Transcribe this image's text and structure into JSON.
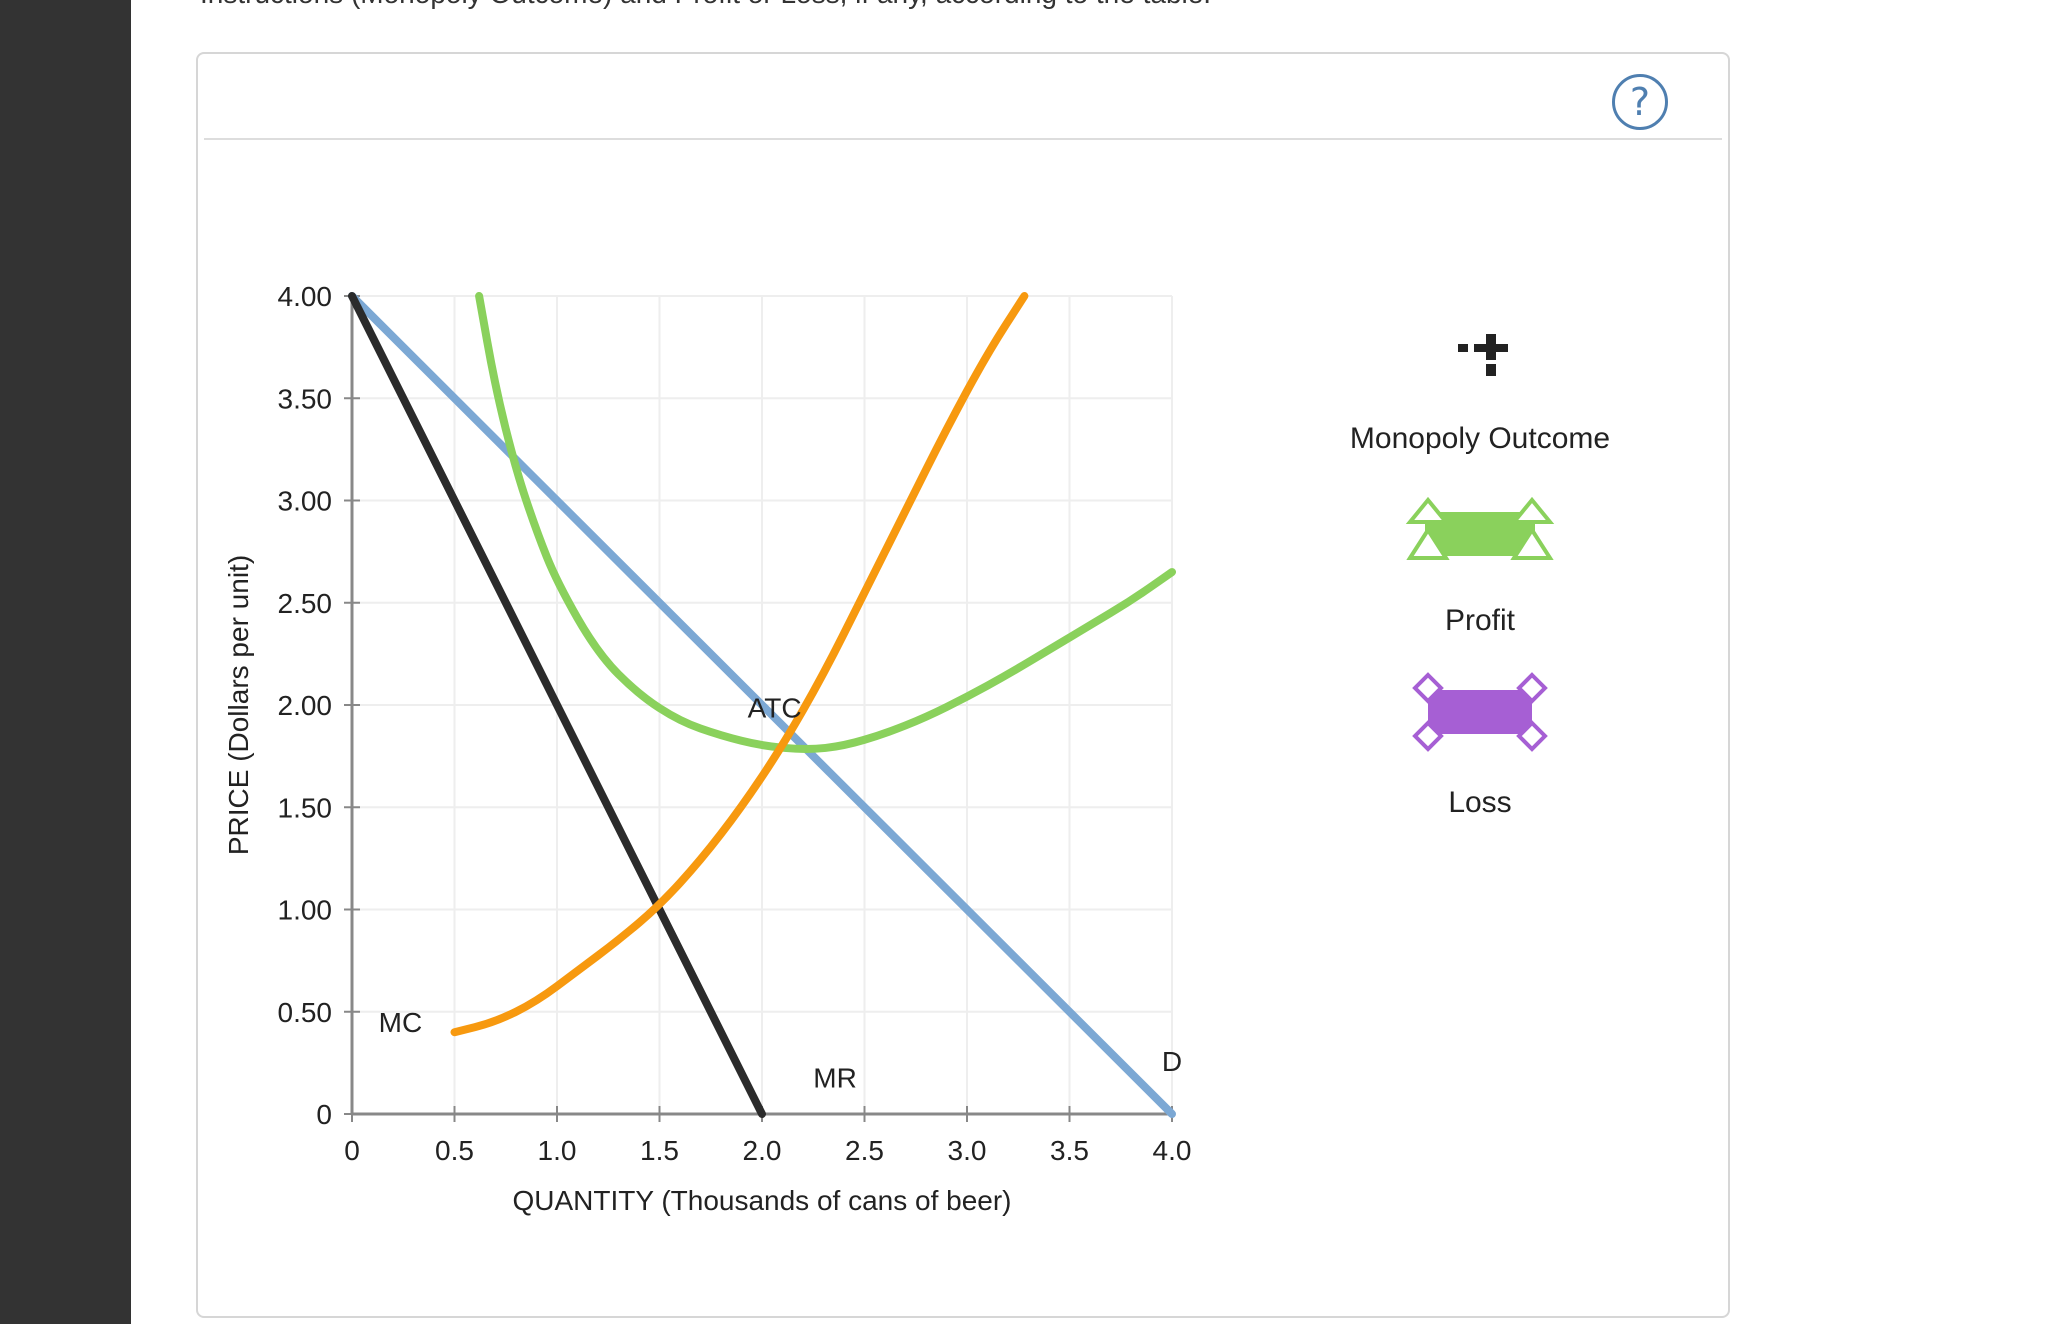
{
  "header": {
    "top_text": "Instructions (Monopoly Outcome) and Profit or Loss, if any, according to the table."
  },
  "help_label": "?",
  "palette": [
    {
      "id": "monopoly",
      "label": "Monopoly Outcome",
      "icon": "crosshair-plus-icon",
      "color": "#222222"
    },
    {
      "id": "profit",
      "label": "Profit",
      "icon": "green-rectangle-triangles-icon",
      "color": "#8ad15c"
    },
    {
      "id": "loss",
      "label": "Loss",
      "icon": "purple-rectangle-diamonds-icon",
      "color": "#a65fd4"
    }
  ],
  "chart_data": {
    "type": "line",
    "xlabel": "QUANTITY (Thousands of cans of beer)",
    "ylabel": "PRICE (Dollars per unit)",
    "xlim": [
      0,
      4.0
    ],
    "ylim": [
      0,
      4.0
    ],
    "xticks": [
      {
        "v": 0,
        "label": "0"
      },
      {
        "v": 0.5,
        "label": "0.5"
      },
      {
        "v": 1.0,
        "label": "1.0"
      },
      {
        "v": 1.5,
        "label": "1.5"
      },
      {
        "v": 2.0,
        "label": "2.0"
      },
      {
        "v": 2.5,
        "label": "2.5"
      },
      {
        "v": 3.0,
        "label": "3.0"
      },
      {
        "v": 3.5,
        "label": "3.5"
      },
      {
        "v": 4.0,
        "label": "4.0"
      }
    ],
    "yticks": [
      {
        "v": 0,
        "label": "0"
      },
      {
        "v": 0.5,
        "label": "0.50"
      },
      {
        "v": 1.0,
        "label": "1.00"
      },
      {
        "v": 1.5,
        "label": "1.50"
      },
      {
        "v": 2.0,
        "label": "2.00"
      },
      {
        "v": 2.5,
        "label": "2.50"
      },
      {
        "v": 3.0,
        "label": "3.00"
      },
      {
        "v": 3.5,
        "label": "3.50"
      },
      {
        "v": 4.0,
        "label": "4.00"
      }
    ],
    "grid": true,
    "series": [
      {
        "name": "D",
        "color": "#7ca8d4",
        "points": [
          [
            0,
            4.0
          ],
          [
            4.0,
            0
          ]
        ]
      },
      {
        "name": "MR",
        "color": "#2b2b2b",
        "points": [
          [
            0,
            4.0
          ],
          [
            2.0,
            0
          ]
        ]
      },
      {
        "name": "ATC",
        "color": "#8ad15c",
        "points": [
          [
            0.62,
            4.0
          ],
          [
            0.7,
            3.55
          ],
          [
            0.8,
            3.15
          ],
          [
            0.9,
            2.85
          ],
          [
            1.0,
            2.6
          ],
          [
            1.2,
            2.25
          ],
          [
            1.4,
            2.05
          ],
          [
            1.6,
            1.92
          ],
          [
            1.8,
            1.85
          ],
          [
            2.0,
            1.8
          ],
          [
            2.22,
            1.78
          ],
          [
            2.4,
            1.8
          ],
          [
            2.6,
            1.86
          ],
          [
            2.8,
            1.94
          ],
          [
            3.0,
            2.04
          ],
          [
            3.2,
            2.15
          ],
          [
            3.4,
            2.27
          ],
          [
            3.6,
            2.39
          ],
          [
            3.8,
            2.51
          ],
          [
            4.0,
            2.65
          ]
        ]
      },
      {
        "name": "MC",
        "color": "#f7990f",
        "points": [
          [
            0.5,
            0.4
          ],
          [
            0.7,
            0.45
          ],
          [
            0.9,
            0.55
          ],
          [
            1.1,
            0.7
          ],
          [
            1.3,
            0.85
          ],
          [
            1.5,
            1.02
          ],
          [
            1.7,
            1.24
          ],
          [
            1.9,
            1.5
          ],
          [
            2.1,
            1.8
          ],
          [
            2.3,
            2.15
          ],
          [
            2.5,
            2.55
          ],
          [
            2.7,
            2.95
          ],
          [
            2.9,
            3.35
          ],
          [
            3.1,
            3.72
          ],
          [
            3.28,
            4.0
          ]
        ]
      }
    ],
    "labels": [
      {
        "text": "ATC",
        "x": 1.93,
        "y": 1.94
      },
      {
        "text": "MC",
        "x": 0.13,
        "y": 0.4
      },
      {
        "text": "MR",
        "x": 2.25,
        "y": 0.13
      },
      {
        "text": "D",
        "x": 4.0,
        "y": 0.21
      }
    ]
  }
}
